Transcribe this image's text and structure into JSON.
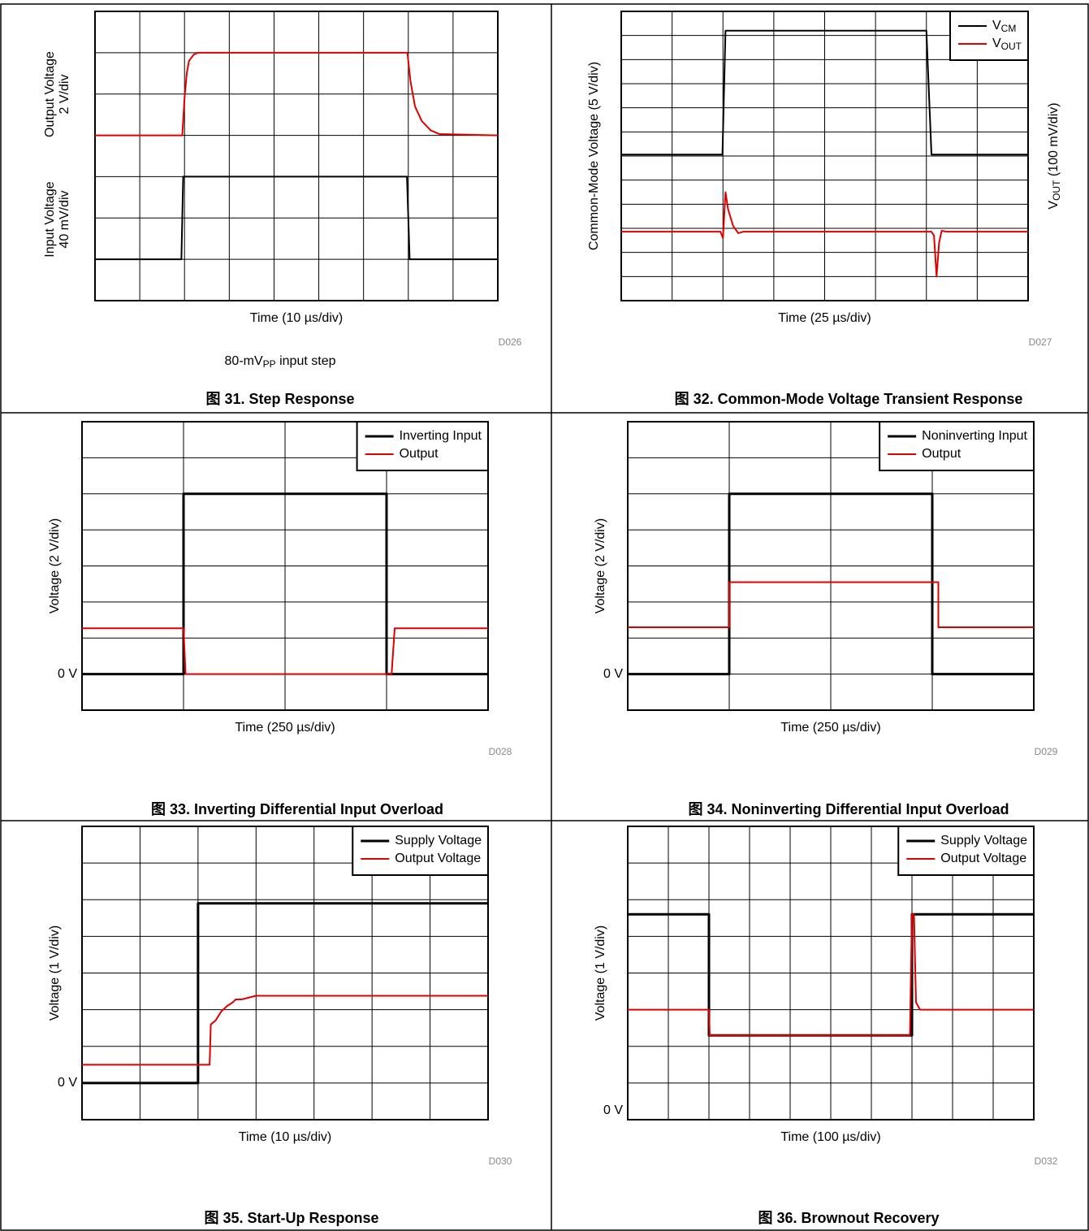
{
  "chart_data": {
    "charts": [
      {
        "type": "line",
        "title": "图 31. Step Response",
        "code": "D026",
        "xlabel": "Time (10 µs/div)",
        "ylabel_groups": [
          [
            "Output Voltage",
            "2 V/div"
          ],
          [
            "Input Voltage",
            "40 mV/div"
          ]
        ],
        "subtitle": {
          "main": "80-mV",
          "sub": "PP",
          "rest": " input step"
        },
        "xlim": [
          0,
          9
        ],
        "ylim": [
          0,
          7
        ],
        "xgrid": [
          0,
          1,
          2,
          3,
          4,
          5,
          6,
          7,
          8,
          9
        ],
        "ygrid": [
          0,
          1,
          2,
          3,
          4,
          5,
          6,
          7
        ],
        "series": [
          {
            "color": "#000000",
            "x": [
              0,
              1.93,
              1.97,
              6.97,
              7.03,
              9
            ],
            "values": [
              1,
              1,
              3,
              3,
              1,
              1
            ]
          },
          {
            "color": "#e00000",
            "x": [
              0,
              1.95,
              2.0,
              2.05,
              2.1,
              2.2,
              2.3,
              2.5,
              6.98,
              7.05,
              7.15,
              7.3,
              7.5,
              7.7,
              9
            ],
            "values": [
              4,
              4,
              4.9,
              5.5,
              5.8,
              5.95,
              6,
              6,
              6,
              5.3,
              4.7,
              4.35,
              4.12,
              4.03,
              4
            ]
          }
        ]
      },
      {
        "type": "line",
        "title": "图 32. Common-Mode Voltage Transient Response",
        "code": "D027",
        "xlabel": "Time (25 µs/div)",
        "ylabel": "Common-Mode Voltage (5 V/div)",
        "y2label": {
          "main": "V",
          "sub": "OUT",
          "rest": " (100 mV/div)"
        },
        "xlim": [
          0,
          8
        ],
        "ylim": [
          0,
          12
        ],
        "xgrid": [
          0,
          1,
          2,
          3,
          4,
          5,
          6,
          7,
          8
        ],
        "ygrid": [
          0,
          1,
          2,
          3,
          4,
          5,
          6,
          7,
          8,
          9,
          10,
          11,
          12
        ],
        "legend": "upper right",
        "series": [
          {
            "name": "V",
            "name_sub": "CM",
            "color": "#000000",
            "x": [
              0,
              1.99,
              2.05,
              6.0,
              6.1,
              8
            ],
            "values": [
              6.06,
              6.06,
              11.2,
              11.2,
              6.06,
              6.06
            ]
          },
          {
            "name": "V",
            "name_sub": "OUT",
            "color": "#e00000",
            "x": [
              0,
              1.95,
              2.0,
              2.05,
              2.1,
              2.2,
              2.3,
              2.4,
              6.1,
              6.15,
              6.2,
              6.25,
              6.3,
              6.4,
              8
            ],
            "values": [
              2.86,
              2.86,
              2.6,
              4.5,
              3.8,
              3.1,
              2.8,
              2.86,
              2.86,
              2.7,
              1.0,
              2.4,
              2.9,
              2.86,
              2.86
            ]
          }
        ]
      },
      {
        "type": "line",
        "title": "图 33. Inverting Differential Input Overload",
        "code": "D028",
        "xlabel": "Time (250 µs/div)",
        "ylabel": "Voltage (2 V/div)",
        "yticks": [
          {
            "value": 1,
            "label": "0 V"
          }
        ],
        "xlim": [
          0,
          4
        ],
        "ylim": [
          0,
          8
        ],
        "xgrid": [
          0,
          1,
          2,
          3,
          4
        ],
        "ygrid": [
          0,
          1,
          2,
          3,
          4,
          5,
          6,
          7,
          8
        ],
        "legend": "upper right",
        "series": [
          {
            "name": "Inverting Input",
            "color": "#000000",
            "x": [
              0,
              1,
              1,
              3,
              3,
              4
            ],
            "values": [
              1,
              1,
              6,
              6,
              1,
              1
            ]
          },
          {
            "name": "Output",
            "color": "#e00000",
            "x": [
              0,
              1,
              1.02,
              3.05,
              3.08,
              4
            ],
            "values": [
              2.27,
              2.27,
              1,
              1,
              2.27,
              2.27
            ]
          }
        ]
      },
      {
        "type": "line",
        "title": "图 34. Noninverting Differential Input Overload",
        "code": "D029",
        "xlabel": "Time (250 µs/div)",
        "ylabel": "Voltage (2 V/div)",
        "yticks": [
          {
            "value": 1,
            "label": "0 V"
          }
        ],
        "xlim": [
          0,
          4
        ],
        "ylim": [
          0,
          8
        ],
        "xgrid": [
          0,
          1,
          2,
          3,
          4
        ],
        "ygrid": [
          0,
          1,
          2,
          3,
          4,
          5,
          6,
          7,
          8
        ],
        "legend": "upper right",
        "series": [
          {
            "name": "Noninverting Input",
            "color": "#000000",
            "x": [
              0,
              1,
              1,
              3,
              3,
              4
            ],
            "values": [
              1,
              1,
              6,
              6,
              1,
              1
            ]
          },
          {
            "name": "Output",
            "color": "#e00000",
            "x": [
              0,
              1,
              1,
              3.06,
              3.06,
              4
            ],
            "values": [
              2.3,
              2.3,
              3.55,
              3.55,
              2.3,
              2.3
            ]
          }
        ]
      },
      {
        "type": "line",
        "title": "图 35. Start-Up Response",
        "code": "D030",
        "xlabel": "Time (10 µs/div)",
        "ylabel": "Voltage (1 V/div)",
        "yticks": [
          {
            "value": 1,
            "label": "0 V"
          }
        ],
        "xlim": [
          0,
          7
        ],
        "ylim": [
          0,
          8
        ],
        "xgrid": [
          0,
          1,
          2,
          3,
          4,
          5,
          6,
          7
        ],
        "ygrid": [
          0,
          1,
          2,
          3,
          4,
          5,
          6,
          7,
          8
        ],
        "legend": "upper right",
        "series": [
          {
            "name": "Supply Voltage",
            "color": "#000000",
            "x": [
              0,
              2,
              2,
              7
            ],
            "values": [
              1,
              1,
              5.9,
              5.9
            ]
          },
          {
            "name": "Output Voltage",
            "color": "#e00000",
            "x": [
              0,
              2.2,
              2.22,
              2.3,
              2.4,
              2.5,
              2.6,
              2.65,
              2.75,
              3.0,
              7
            ],
            "values": [
              1.5,
              1.5,
              2.6,
              2.7,
              2.95,
              3.1,
              3.2,
              3.28,
              3.28,
              3.38,
              3.38
            ]
          }
        ]
      },
      {
        "type": "line",
        "title": "图 36. Brownout Recovery",
        "code": "D032",
        "xlabel": "Time (100 µs/div)",
        "ylabel": "Voltage (1 V/div)",
        "yticks": [
          {
            "value": 0.25,
            "label": "0 V"
          }
        ],
        "xlim": [
          0,
          10
        ],
        "ylim": [
          0,
          8
        ],
        "xgrid": [
          0,
          1,
          2,
          3,
          4,
          5,
          6,
          7,
          8,
          9,
          10
        ],
        "ygrid": [
          0,
          1,
          2,
          3,
          4,
          5,
          6,
          7,
          8
        ],
        "legend": "upper right",
        "series": [
          {
            "name": "Supply Voltage",
            "color": "#000000",
            "x": [
              0,
              2,
              2,
              7,
              7,
              10
            ],
            "values": [
              5.6,
              5.6,
              2.3,
              2.3,
              5.6,
              5.6
            ]
          },
          {
            "name": "Output Voltage",
            "color": "#e00000",
            "x": [
              0,
              2,
              2.02,
              6.95,
              7.0,
              7.05,
              7.1,
              7.2,
              10
            ],
            "values": [
              3.0,
              3.0,
              2.3,
              2.3,
              5.6,
              5.6,
              3.2,
              3.0,
              3.0
            ]
          }
        ]
      }
    ]
  }
}
